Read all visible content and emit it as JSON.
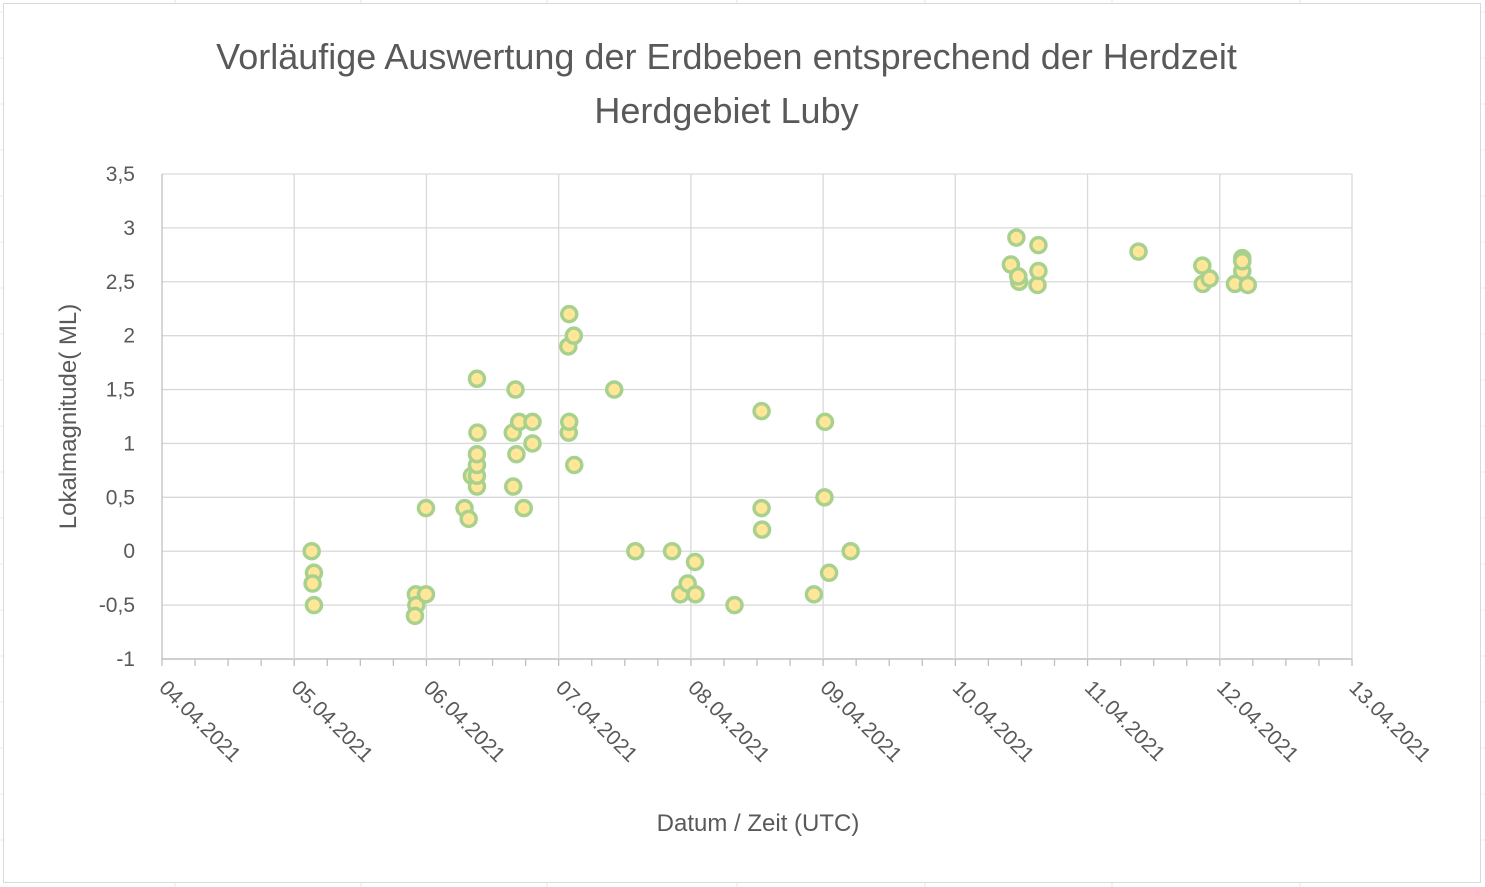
{
  "chart_data": {
    "type": "scatter",
    "title": "Vorläufige Auswertung der Erdbeben entsprechend der Herdzeit",
    "subtitle": "Herdgebiet Luby",
    "xlabel": "Datum / Zeit (UTC)",
    "ylabel": "Lokalmagnitude( ML)",
    "x_tick_labels": [
      "04.04.2021",
      "05.04.2021",
      "06.04.2021",
      "07.04.2021",
      "08.04.2021",
      "09.04.2021",
      "10.04.2021",
      "11.04.2021",
      "12.04.2021",
      "13.04.2021"
    ],
    "y_tick_labels": [
      "3,5",
      "3",
      "2,5",
      "2",
      "1,5",
      "1",
      "0,5",
      "0",
      "-0,5",
      "-1"
    ],
    "xlim": [
      "2021-04-04",
      "2021-04-13"
    ],
    "ylim": [
      -1,
      3.5
    ],
    "grid": "major vertical and horizontal gridlines",
    "legend": "none",
    "marker": {
      "fill": "#ffe699",
      "stroke": "#a9d18e"
    },
    "colors": {
      "grid": "#d9d9d9",
      "text": "#595959",
      "axis": "#bfbfbf"
    },
    "points": [
      {
        "x": "2021-04-05 03:10",
        "y": 0.0
      },
      {
        "x": "2021-04-05 03:35",
        "y": -0.2
      },
      {
        "x": "2021-04-05 03:20",
        "y": -0.3
      },
      {
        "x": "2021-04-05 03:35",
        "y": -0.5
      },
      {
        "x": "2021-04-05 22:05",
        "y": -0.4
      },
      {
        "x": "2021-04-05 22:10",
        "y": -0.5
      },
      {
        "x": "2021-04-05 21:55",
        "y": -0.6
      },
      {
        "x": "2021-04-05 23:55",
        "y": -0.4
      },
      {
        "x": "2021-04-05 23:55",
        "y": 0.4
      },
      {
        "x": "2021-04-06 06:55",
        "y": 0.4
      },
      {
        "x": "2021-04-06 07:40",
        "y": 0.3
      },
      {
        "x": "2021-04-06 08:15",
        "y": 0.7
      },
      {
        "x": "2021-04-06 09:10",
        "y": 0.6
      },
      {
        "x": "2021-04-06 09:10",
        "y": 0.7
      },
      {
        "x": "2021-04-06 09:10",
        "y": 0.8
      },
      {
        "x": "2021-04-06 09:10",
        "y": 0.9
      },
      {
        "x": "2021-04-06 09:15",
        "y": 1.1
      },
      {
        "x": "2021-04-06 09:10",
        "y": 1.6
      },
      {
        "x": "2021-04-06 15:45",
        "y": 0.6
      },
      {
        "x": "2021-04-06 15:40",
        "y": 1.1
      },
      {
        "x": "2021-04-06 16:20",
        "y": 0.9
      },
      {
        "x": "2021-04-06 16:10",
        "y": 1.5
      },
      {
        "x": "2021-04-06 16:50",
        "y": 1.2
      },
      {
        "x": "2021-04-06 17:40",
        "y": 0.4
      },
      {
        "x": "2021-04-06 19:15",
        "y": 1.0
      },
      {
        "x": "2021-04-06 19:15",
        "y": 1.2
      },
      {
        "x": "2021-04-07 01:50",
        "y": 1.1
      },
      {
        "x": "2021-04-07 01:55",
        "y": 1.2
      },
      {
        "x": "2021-04-07 02:50",
        "y": 0.8
      },
      {
        "x": "2021-04-07 01:45",
        "y": 1.9
      },
      {
        "x": "2021-04-07 02:45",
        "y": 2.0
      },
      {
        "x": "2021-04-07 01:55",
        "y": 2.2
      },
      {
        "x": "2021-04-07 10:05",
        "y": 1.5
      },
      {
        "x": "2021-04-07 13:55",
        "y": 0.0
      },
      {
        "x": "2021-04-07 20:35",
        "y": 0.0
      },
      {
        "x": "2021-04-07 22:05",
        "y": -0.4
      },
      {
        "x": "2021-04-07 23:25",
        "y": -0.3
      },
      {
        "x": "2021-04-08 00:50",
        "y": -0.4
      },
      {
        "x": "2021-04-08 00:45",
        "y": -0.1
      },
      {
        "x": "2021-04-08 07:55",
        "y": -0.5
      },
      {
        "x": "2021-04-08 12:55",
        "y": 0.2
      },
      {
        "x": "2021-04-08 12:50",
        "y": 0.4
      },
      {
        "x": "2021-04-08 12:50",
        "y": 1.3
      },
      {
        "x": "2021-04-08 22:20",
        "y": -0.4
      },
      {
        "x": "2021-04-09 01:05",
        "y": -0.2
      },
      {
        "x": "2021-04-09 00:15",
        "y": 0.5
      },
      {
        "x": "2021-04-09 00:20",
        "y": 1.2
      },
      {
        "x": "2021-04-09 05:00",
        "y": 0.0
      },
      {
        "x": "2021-04-10 10:05",
        "y": 2.66
      },
      {
        "x": "2021-04-10 11:35",
        "y": 2.5
      },
      {
        "x": "2021-04-10 11:25",
        "y": 2.55
      },
      {
        "x": "2021-04-10 11:05",
        "y": 2.91
      },
      {
        "x": "2021-04-10 14:55",
        "y": 2.47
      },
      {
        "x": "2021-04-10 15:05",
        "y": 2.6
      },
      {
        "x": "2021-04-10 15:05",
        "y": 2.84
      },
      {
        "x": "2021-04-11 09:15",
        "y": 2.78
      },
      {
        "x": "2021-04-11 20:50",
        "y": 2.65
      },
      {
        "x": "2021-04-11 20:55",
        "y": 2.48
      },
      {
        "x": "2021-04-11 22:10",
        "y": 2.53
      },
      {
        "x": "2021-04-12 02:45",
        "y": 2.48
      },
      {
        "x": "2021-04-12 04:05",
        "y": 2.6
      },
      {
        "x": "2021-04-12 04:05",
        "y": 2.72
      },
      {
        "x": "2021-04-12 04:05",
        "y": 2.69
      },
      {
        "x": "2021-04-12 05:05",
        "y": 2.47
      }
    ]
  }
}
